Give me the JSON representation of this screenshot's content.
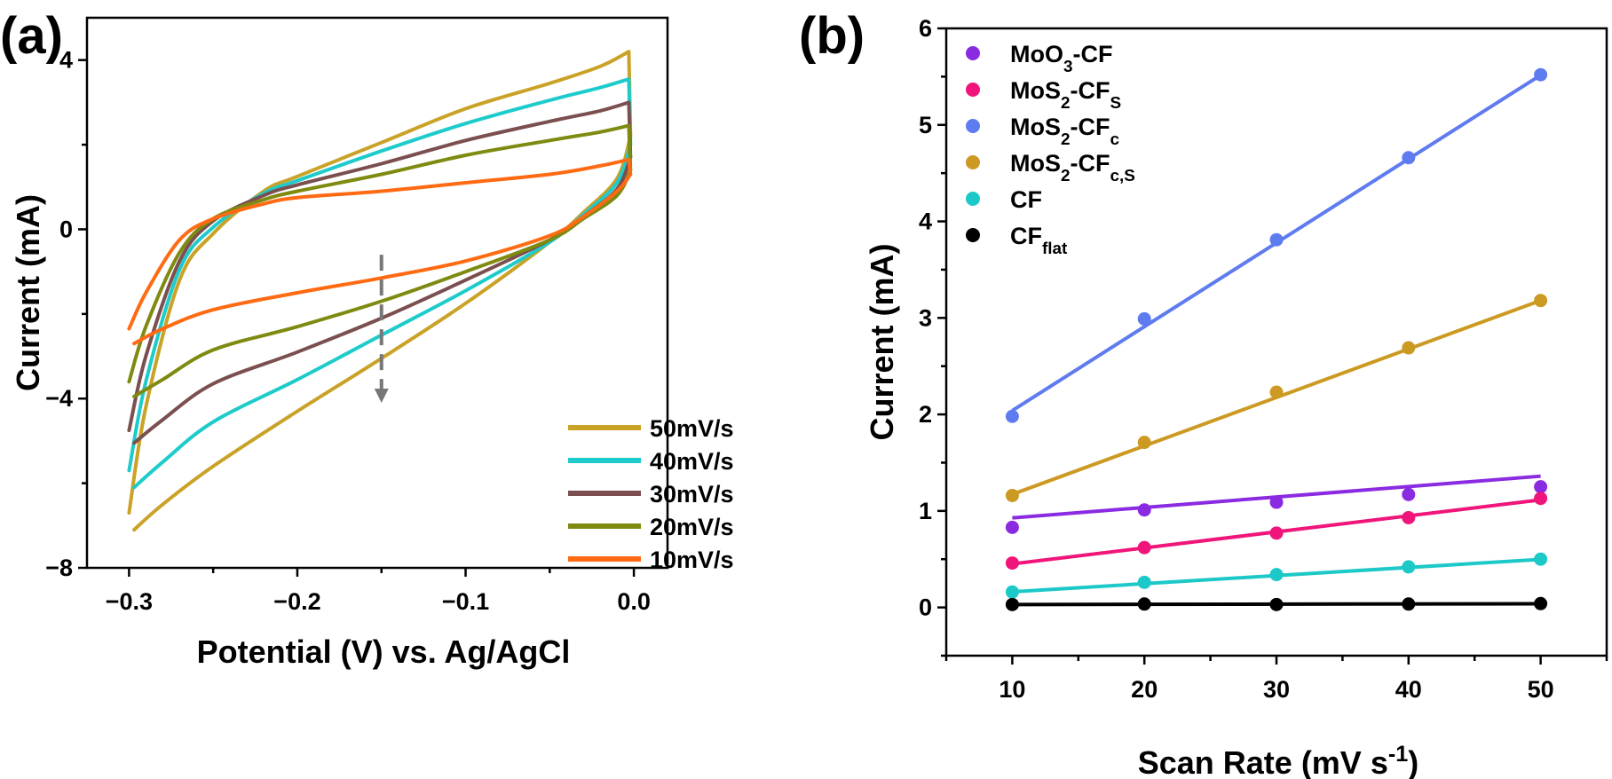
{
  "panels": {
    "a": {
      "label": "(a)"
    },
    "b": {
      "label": "(b)"
    }
  },
  "chart_data": [
    {
      "type": "line",
      "xlabel": "Potential (V) vs. Ag/AgCl",
      "ylabel": "Current (mA)",
      "xlim": [
        -0.325,
        0.02
      ],
      "ylim": [
        -8,
        5
      ],
      "xticks": [
        -0.3,
        -0.2,
        -0.1,
        0.0
      ],
      "xtick_labels": [
        "−0.3",
        "−0.2",
        "−0.1",
        "0.0"
      ],
      "yticks": [
        -8,
        -4,
        0,
        4
      ],
      "ytick_labels": [
        "−8",
        "−4",
        "0",
        "4"
      ],
      "grid": false,
      "legend_position": "bottom-right",
      "annotation": {
        "type": "dashed-arrow",
        "x": -0.15,
        "from_y": -0.6,
        "to_y": -4.1,
        "color": "#777777"
      },
      "series": [
        {
          "name": "50mV/s",
          "color": "#C9A227",
          "upper": [
            [
              -0.3,
              -6.7
            ],
            [
              -0.29,
              -4.2
            ],
            [
              -0.27,
              -1.2
            ],
            [
              -0.25,
              -0.1
            ],
            [
              -0.22,
              0.9
            ],
            [
              -0.2,
              1.25
            ],
            [
              -0.15,
              2.05
            ],
            [
              -0.1,
              2.85
            ],
            [
              -0.05,
              3.45
            ],
            [
              -0.02,
              3.85
            ],
            [
              -0.003,
              4.2
            ]
          ],
          "lower": [
            [
              -0.002,
              2.2
            ],
            [
              -0.01,
              1.2
            ],
            [
              -0.03,
              0.4
            ],
            [
              -0.05,
              -0.3
            ],
            [
              -0.1,
              -1.75
            ],
            [
              -0.15,
              -3.05
            ],
            [
              -0.2,
              -4.3
            ],
            [
              -0.25,
              -5.6
            ],
            [
              -0.28,
              -6.5
            ],
            [
              -0.297,
              -7.1
            ]
          ]
        },
        {
          "name": "40mV/s",
          "color": "#1ECBCB",
          "upper": [
            [
              -0.3,
              -5.7
            ],
            [
              -0.29,
              -3.6
            ],
            [
              -0.27,
              -0.95
            ],
            [
              -0.25,
              0.05
            ],
            [
              -0.22,
              0.85
            ],
            [
              -0.2,
              1.15
            ],
            [
              -0.15,
              1.85
            ],
            [
              -0.1,
              2.5
            ],
            [
              -0.05,
              3.05
            ],
            [
              -0.02,
              3.35
            ],
            [
              -0.003,
              3.55
            ]
          ],
          "lower": [
            [
              -0.002,
              2.0
            ],
            [
              -0.01,
              1.1
            ],
            [
              -0.03,
              0.35
            ],
            [
              -0.05,
              -0.3
            ],
            [
              -0.1,
              -1.45
            ],
            [
              -0.15,
              -2.5
            ],
            [
              -0.2,
              -3.55
            ],
            [
              -0.25,
              -4.55
            ],
            [
              -0.28,
              -5.5
            ],
            [
              -0.297,
              -6.1
            ]
          ]
        },
        {
          "name": "30mV/s",
          "color": "#7B4F4F",
          "upper": [
            [
              -0.3,
              -4.75
            ],
            [
              -0.29,
              -3.0
            ],
            [
              -0.27,
              -0.75
            ],
            [
              -0.25,
              0.2
            ],
            [
              -0.22,
              0.8
            ],
            [
              -0.2,
              1.05
            ],
            [
              -0.15,
              1.55
            ],
            [
              -0.1,
              2.1
            ],
            [
              -0.05,
              2.55
            ],
            [
              -0.02,
              2.8
            ],
            [
              -0.003,
              3.0
            ]
          ],
          "lower": [
            [
              -0.002,
              1.7
            ],
            [
              -0.01,
              0.95
            ],
            [
              -0.03,
              0.3
            ],
            [
              -0.05,
              -0.25
            ],
            [
              -0.1,
              -1.2
            ],
            [
              -0.15,
              -2.1
            ],
            [
              -0.2,
              -2.9
            ],
            [
              -0.25,
              -3.65
            ],
            [
              -0.28,
              -4.5
            ],
            [
              -0.297,
              -5.05
            ]
          ]
        },
        {
          "name": "20mV/s",
          "color": "#7F8A10",
          "upper": [
            [
              -0.3,
              -3.6
            ],
            [
              -0.29,
              -2.3
            ],
            [
              -0.27,
              -0.55
            ],
            [
              -0.25,
              0.25
            ],
            [
              -0.22,
              0.7
            ],
            [
              -0.2,
              0.9
            ],
            [
              -0.15,
              1.3
            ],
            [
              -0.1,
              1.75
            ],
            [
              -0.05,
              2.1
            ],
            [
              -0.02,
              2.3
            ],
            [
              -0.003,
              2.45
            ]
          ],
          "lower": [
            [
              -0.002,
              1.4
            ],
            [
              -0.01,
              0.8
            ],
            [
              -0.03,
              0.25
            ],
            [
              -0.05,
              -0.25
            ],
            [
              -0.1,
              -1.0
            ],
            [
              -0.15,
              -1.7
            ],
            [
              -0.2,
              -2.3
            ],
            [
              -0.25,
              -2.85
            ],
            [
              -0.28,
              -3.55
            ],
            [
              -0.297,
              -3.95
            ]
          ]
        },
        {
          "name": "10mV/s",
          "color": "#FF6A13",
          "upper": [
            [
              -0.3,
              -2.35
            ],
            [
              -0.29,
              -1.5
            ],
            [
              -0.27,
              -0.25
            ],
            [
              -0.25,
              0.25
            ],
            [
              -0.22,
              0.6
            ],
            [
              -0.2,
              0.75
            ],
            [
              -0.15,
              0.9
            ],
            [
              -0.1,
              1.1
            ],
            [
              -0.05,
              1.3
            ],
            [
              -0.02,
              1.5
            ],
            [
              -0.003,
              1.65
            ]
          ],
          "lower": [
            [
              -0.002,
              1.3
            ],
            [
              -0.01,
              0.9
            ],
            [
              -0.03,
              0.3
            ],
            [
              -0.05,
              -0.15
            ],
            [
              -0.1,
              -0.75
            ],
            [
              -0.15,
              -1.15
            ],
            [
              -0.2,
              -1.5
            ],
            [
              -0.25,
              -1.9
            ],
            [
              -0.28,
              -2.35
            ],
            [
              -0.297,
              -2.7
            ]
          ]
        }
      ]
    },
    {
      "type": "scatter",
      "xlabel_parts": [
        {
          "t": "Scan Rate (mV s",
          "s": ""
        },
        {
          "t": "-1",
          "s": "sup"
        },
        {
          "t": ")",
          "s": ""
        }
      ],
      "ylabel": "Current (mA)",
      "xlim": [
        5,
        55
      ],
      "ylim": [
        -0.5,
        6
      ],
      "xticks": [
        10,
        20,
        30,
        40,
        50
      ],
      "xtick_labels": [
        "10",
        "20",
        "30",
        "40",
        "50"
      ],
      "yticks": [
        0,
        1,
        2,
        3,
        4,
        5,
        6
      ],
      "ytick_labels": [
        "0",
        "1",
        "2",
        "3",
        "4",
        "5",
        "6"
      ],
      "grid": false,
      "legend_position": "top-left",
      "x": [
        10,
        20,
        30,
        40,
        50
      ],
      "series": [
        {
          "name_parts": [
            {
              "t": "MoO",
              "s": ""
            },
            {
              "t": "3",
              "s": "sub"
            },
            {
              "t": "-CF",
              "s": ""
            }
          ],
          "color": "#8A2BE2",
          "values": [
            0.83,
            1.01,
            1.09,
            1.17,
            1.25
          ],
          "fit": [
            0.82,
            0.0108
          ]
        },
        {
          "name_parts": [
            {
              "t": "MoS",
              "s": ""
            },
            {
              "t": "2",
              "s": "sub"
            },
            {
              "t": "-CF",
              "s": ""
            },
            {
              "t": "S",
              "s": "sub"
            }
          ],
          "color": "#F0157A",
          "values": [
            0.46,
            0.62,
            0.77,
            0.93,
            1.13
          ],
          "fit": [
            0.285,
            0.0166
          ]
        },
        {
          "name_parts": [
            {
              "t": "MoS",
              "s": ""
            },
            {
              "t": "2",
              "s": "sub"
            },
            {
              "t": "-CF",
              "s": ""
            },
            {
              "t": "c",
              "s": "sub"
            }
          ],
          "color": "#5F7BF0",
          "values": [
            1.98,
            2.99,
            3.81,
            4.66,
            5.52
          ],
          "fit": [
            1.171,
            0.0869
          ]
        },
        {
          "name_parts": [
            {
              "t": "MoS",
              "s": ""
            },
            {
              "t": "2",
              "s": "sub"
            },
            {
              "t": "-CF",
              "s": ""
            },
            {
              "t": "c,S",
              "s": "sub"
            }
          ],
          "color": "#CC9A22",
          "values": [
            1.16,
            1.71,
            2.23,
            2.69,
            3.18
          ],
          "fit": [
            0.67,
            0.0502
          ]
        },
        {
          "name_parts": [
            {
              "t": "CF",
              "s": ""
            }
          ],
          "color": "#1CC8C8",
          "values": [
            0.16,
            0.26,
            0.34,
            0.42,
            0.5
          ],
          "fit": [
            0.078,
            0.0084
          ]
        },
        {
          "name_parts": [
            {
              "t": "CF",
              "s": ""
            },
            {
              "t": "flat",
              "s": "sub"
            }
          ],
          "color": "#000000",
          "values": [
            0.03,
            0.035,
            0.03,
            0.035,
            0.04
          ],
          "fit": [
            0.028,
            0.0002
          ]
        }
      ]
    }
  ]
}
